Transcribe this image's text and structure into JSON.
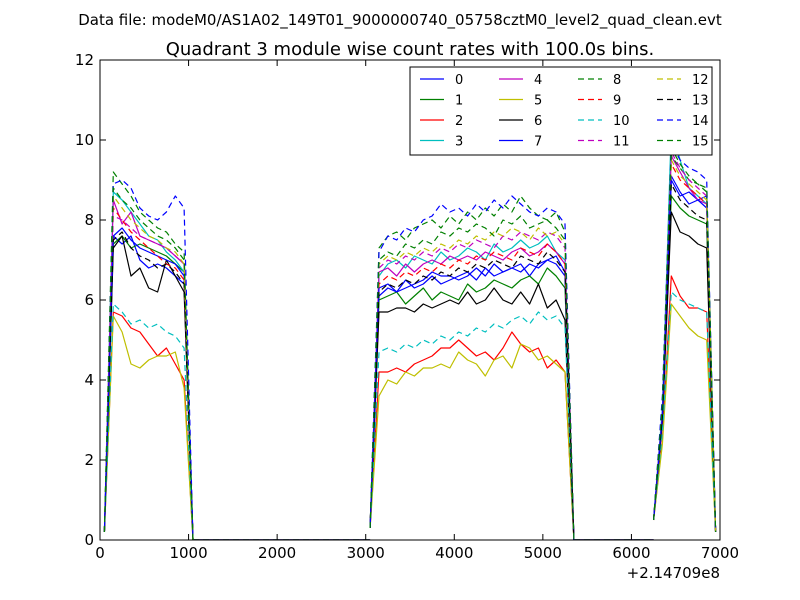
{
  "suptitle": "Data file: modeM0/AS1A02_149T01_9000000740_05758cztM0_level2_quad_clean.evt",
  "chart_data": {
    "type": "line",
    "title": "Quadrant 3 module wise count rates with 100.0s bins.",
    "xlabel": "",
    "ylabel": "",
    "x_offset_label": "+2.14709e8",
    "xlim": [
      0,
      7000
    ],
    "ylim": [
      0,
      12
    ],
    "x_ticks": [
      "0",
      "1000",
      "2000",
      "3000",
      "4000",
      "5000",
      "6000",
      "7000"
    ],
    "y_ticks": [
      "0",
      "2",
      "4",
      "6",
      "8",
      "10",
      "12"
    ],
    "grid": false,
    "legend_position": "upper-right",
    "x": [
      50,
      150,
      250,
      350,
      450,
      550,
      650,
      750,
      850,
      950,
      1050,
      1150,
      1250,
      1350,
      1450,
      1550,
      1650,
      1750,
      1850,
      1950,
      2050,
      2150,
      2250,
      2350,
      2450,
      2550,
      2650,
      2750,
      2850,
      2950,
      3050,
      3150,
      3250,
      3350,
      3450,
      3550,
      3650,
      3750,
      3850,
      3950,
      4050,
      4150,
      4250,
      4350,
      4450,
      4550,
      4650,
      4750,
      4850,
      4950,
      5050,
      5150,
      5250,
      5350,
      5450,
      5550,
      5650,
      5750,
      5850,
      5950,
      6050,
      6150,
      6250,
      6350,
      6450,
      6550,
      6650,
      6750,
      6850,
      6950
    ],
    "segments": [
      {
        "start": 0,
        "end": 10
      },
      {
        "start": 30,
        "end": 53
      },
      {
        "start": 62,
        "end": 69
      }
    ],
    "series": [
      {
        "name": "0",
        "color": "#0000ff",
        "dash": "solid",
        "values": [
          0.2,
          7.6,
          7.4,
          7.6,
          7.0,
          6.8,
          6.9,
          6.8,
          6.6,
          6.4,
          0,
          0,
          0,
          0,
          0,
          0,
          0,
          0,
          0,
          0,
          0,
          0,
          0,
          0,
          0,
          0,
          0,
          0,
          0,
          0,
          0.3,
          6.1,
          6.3,
          6.2,
          6.3,
          6.4,
          6.5,
          6.7,
          6.6,
          6.6,
          6.5,
          6.6,
          6.8,
          6.6,
          6.9,
          6.7,
          6.8,
          6.9,
          6.6,
          6.9,
          7.0,
          7.1,
          6.7,
          0,
          0,
          0,
          0,
          0,
          0,
          0,
          0,
          0,
          0.5,
          3.0,
          9.0,
          8.6,
          8.7,
          8.5,
          8.6,
          0.2
        ]
      },
      {
        "name": "1",
        "color": "#008000",
        "dash": "solid",
        "values": [
          0.2,
          7.4,
          7.6,
          7.3,
          7.4,
          7.3,
          7.2,
          7.1,
          6.9,
          6.7,
          0,
          0,
          0,
          0,
          0,
          0,
          0,
          0,
          0,
          0,
          0,
          0,
          0,
          0,
          0,
          0,
          0,
          0,
          0,
          0,
          0.3,
          6.0,
          6.1,
          6.2,
          5.9,
          6.1,
          6.3,
          6.0,
          6.2,
          6.1,
          6.0,
          6.4,
          6.2,
          6.3,
          6.5,
          6.4,
          6.3,
          6.5,
          6.6,
          6.4,
          6.8,
          6.6,
          6.3,
          0,
          0,
          0,
          0,
          0,
          0,
          0,
          0,
          0,
          0.5,
          3.0,
          8.6,
          8.3,
          8.1,
          8.0,
          7.9,
          0.2
        ]
      },
      {
        "name": "2",
        "color": "#ff0000",
        "dash": "solid",
        "values": [
          0.2,
          5.7,
          5.6,
          5.3,
          5.2,
          4.9,
          4.6,
          4.8,
          4.4,
          4.0,
          0,
          0,
          0,
          0,
          0,
          0,
          0,
          0,
          0,
          0,
          0,
          0,
          0,
          0,
          0,
          0,
          0,
          0,
          0,
          0,
          0.3,
          4.2,
          4.2,
          4.3,
          4.2,
          4.4,
          4.5,
          4.6,
          4.8,
          4.8,
          5.0,
          4.8,
          4.6,
          4.7,
          4.5,
          4.8,
          5.2,
          4.9,
          4.7,
          4.8,
          4.3,
          4.5,
          4.2,
          0,
          0,
          0,
          0,
          0,
          0,
          0,
          0,
          0,
          0.5,
          2.5,
          6.6,
          6.1,
          5.8,
          5.8,
          5.7,
          0.2
        ]
      },
      {
        "name": "3",
        "color": "#00bfbf",
        "dash": "solid",
        "values": [
          0.2,
          8.7,
          8.5,
          8.2,
          7.9,
          7.6,
          7.5,
          7.2,
          7.0,
          6.7,
          0,
          0,
          0,
          0,
          0,
          0,
          0,
          0,
          0,
          0,
          0,
          0,
          0,
          0,
          0,
          0,
          0,
          0,
          0,
          0,
          0.3,
          6.6,
          6.9,
          7.0,
          6.8,
          7.1,
          7.0,
          6.9,
          7.2,
          7.0,
          7.1,
          7.3,
          7.2,
          7.0,
          7.4,
          7.2,
          7.3,
          7.5,
          7.3,
          7.4,
          7.6,
          7.2,
          7.0,
          0,
          0,
          0,
          0,
          0,
          0,
          0,
          0,
          0,
          0.5,
          3.3,
          10.3,
          9.5,
          8.8,
          8.6,
          8.4,
          0.2
        ]
      },
      {
        "name": "4",
        "color": "#bf00bf",
        "dash": "solid",
        "values": [
          0.2,
          8.5,
          7.9,
          8.2,
          7.6,
          7.5,
          7.4,
          7.3,
          7.1,
          6.9,
          0,
          0,
          0,
          0,
          0,
          0,
          0,
          0,
          0,
          0,
          0,
          0,
          0,
          0,
          0,
          0,
          0,
          0,
          0,
          0,
          0.3,
          6.7,
          6.8,
          6.6,
          6.9,
          6.7,
          6.9,
          7.0,
          6.9,
          7.1,
          7.0,
          7.1,
          7.0,
          7.2,
          7.1,
          7.0,
          7.2,
          7.3,
          7.1,
          7.2,
          7.4,
          7.2,
          6.9,
          0,
          0,
          0,
          0,
          0,
          0,
          0,
          0,
          0,
          0.5,
          3.2,
          9.6,
          9.2,
          8.8,
          8.5,
          8.4,
          0.2
        ]
      },
      {
        "name": "5",
        "color": "#bfbf00",
        "dash": "solid",
        "values": [
          0.2,
          5.6,
          5.2,
          4.4,
          4.3,
          4.5,
          4.6,
          4.6,
          4.7,
          3.8,
          0,
          0,
          0,
          0,
          0,
          0,
          0,
          0,
          0,
          0,
          0,
          0,
          0,
          0,
          0,
          0,
          0,
          0,
          0,
          0,
          0.3,
          3.6,
          4.0,
          3.9,
          4.2,
          4.1,
          4.3,
          4.3,
          4.4,
          4.3,
          4.7,
          4.5,
          4.4,
          4.1,
          4.5,
          4.6,
          4.3,
          4.9,
          4.8,
          4.5,
          4.6,
          4.4,
          4.2,
          0,
          0,
          0,
          0,
          0,
          0,
          0,
          0,
          0,
          0.5,
          2.4,
          5.9,
          5.6,
          5.3,
          5.1,
          5.0,
          0.2
        ]
      },
      {
        "name": "6",
        "color": "#000000",
        "dash": "solid",
        "values": [
          0.2,
          7.3,
          7.6,
          6.6,
          6.8,
          6.3,
          6.2,
          7.0,
          6.6,
          6.2,
          0,
          0,
          0,
          0,
          0,
          0,
          0,
          0,
          0,
          0,
          0,
          0,
          0,
          0,
          0,
          0,
          0,
          0,
          0,
          0,
          0.3,
          5.7,
          5.7,
          5.8,
          5.8,
          5.7,
          5.9,
          5.8,
          5.9,
          6.0,
          5.9,
          6.2,
          5.9,
          6.0,
          6.3,
          6.0,
          5.9,
          6.2,
          5.9,
          6.4,
          5.8,
          6.0,
          5.5,
          0,
          0,
          0,
          0,
          0,
          0,
          0,
          0,
          0,
          0.5,
          3.0,
          8.2,
          7.7,
          7.6,
          7.4,
          7.3,
          0.2
        ]
      },
      {
        "name": "7",
        "color": "#0000ff",
        "dash": "solid",
        "values": [
          0.2,
          7.6,
          7.8,
          7.5,
          7.3,
          7.2,
          7.1,
          7.0,
          6.9,
          6.6,
          0,
          0,
          0,
          0,
          0,
          0,
          0,
          0,
          0,
          0,
          0,
          0,
          0,
          0,
          0,
          0,
          0,
          0,
          0,
          0,
          0.3,
          6.3,
          6.4,
          6.2,
          6.5,
          6.3,
          6.4,
          6.6,
          6.4,
          6.5,
          6.6,
          6.7,
          6.5,
          6.8,
          6.6,
          6.7,
          6.8,
          6.7,
          6.9,
          6.8,
          7.0,
          6.9,
          6.6,
          0,
          0,
          0,
          0,
          0,
          0,
          0,
          0,
          0,
          0.5,
          3.1,
          9.1,
          8.7,
          8.4,
          8.5,
          8.3,
          0.2
        ]
      },
      {
        "name": "8",
        "color": "#008000",
        "dash": "dash",
        "values": [
          0.2,
          9.2,
          8.9,
          8.6,
          8.2,
          8.0,
          7.8,
          7.7,
          7.4,
          7.2,
          0,
          0,
          0,
          0,
          0,
          0,
          0,
          0,
          0,
          0,
          0,
          0,
          0,
          0,
          0,
          0,
          0,
          0,
          0,
          0,
          0.3,
          7.3,
          7.6,
          7.7,
          7.5,
          7.8,
          7.9,
          8.0,
          7.8,
          8.1,
          7.9,
          8.2,
          8.0,
          8.3,
          8.1,
          8.4,
          8.2,
          8.6,
          8.3,
          8.1,
          8.0,
          8.2,
          7.7,
          0,
          0,
          0,
          0,
          0,
          0,
          0,
          0,
          0,
          0.5,
          3.5,
          9.6,
          9.3,
          9.0,
          8.9,
          8.7,
          0.2
        ]
      },
      {
        "name": "9",
        "color": "#ff0000",
        "dash": "dash",
        "values": [
          0.2,
          8.3,
          8.0,
          7.7,
          7.5,
          7.3,
          7.1,
          6.9,
          6.8,
          6.5,
          0,
          0,
          0,
          0,
          0,
          0,
          0,
          0,
          0,
          0,
          0,
          0,
          0,
          0,
          0,
          0,
          0,
          0,
          0,
          0,
          0.3,
          6.4,
          6.6,
          6.5,
          6.7,
          6.6,
          6.8,
          6.7,
          6.9,
          6.8,
          7.0,
          6.9,
          7.1,
          7.0,
          7.2,
          7.1,
          7.0,
          7.3,
          7.2,
          7.1,
          7.4,
          7.2,
          6.9,
          0,
          0,
          0,
          0,
          0,
          0,
          0,
          0,
          0,
          0.5,
          3.2,
          9.4,
          9.0,
          8.8,
          8.6,
          8.4,
          0.2
        ]
      },
      {
        "name": "10",
        "color": "#00bfbf",
        "dash": "dash",
        "values": [
          0.2,
          5.9,
          5.7,
          5.4,
          5.5,
          5.3,
          5.4,
          5.2,
          5.1,
          4.8,
          0,
          0,
          0,
          0,
          0,
          0,
          0,
          0,
          0,
          0,
          0,
          0,
          0,
          0,
          0,
          0,
          0,
          0,
          0,
          0,
          0.3,
          4.7,
          4.8,
          4.7,
          4.9,
          4.8,
          5.0,
          4.9,
          5.1,
          5.0,
          5.2,
          5.1,
          5.3,
          5.2,
          5.4,
          5.3,
          5.5,
          5.6,
          5.4,
          5.7,
          5.5,
          5.6,
          5.3,
          0,
          0,
          0,
          0,
          0,
          0,
          0,
          0,
          0,
          0.5,
          2.7,
          6.2,
          6.0,
          5.9,
          5.8,
          5.7,
          0.2
        ]
      },
      {
        "name": "11",
        "color": "#bf00bf",
        "dash": "dash",
        "values": [
          0.2,
          8.1,
          8.0,
          7.8,
          7.6,
          7.5,
          7.4,
          7.3,
          7.1,
          6.9,
          0,
          0,
          0,
          0,
          0,
          0,
          0,
          0,
          0,
          0,
          0,
          0,
          0,
          0,
          0,
          0,
          0,
          0,
          0,
          0,
          0.3,
          6.8,
          7.0,
          6.9,
          7.1,
          7.0,
          7.2,
          7.1,
          7.3,
          7.2,
          7.4,
          7.3,
          7.5,
          7.4,
          7.3,
          7.6,
          7.5,
          7.7,
          7.6,
          7.5,
          7.7,
          7.6,
          7.3,
          0,
          0,
          0,
          0,
          0,
          0,
          0,
          0,
          0,
          0.5,
          3.3,
          9.7,
          9.3,
          9.0,
          8.8,
          8.6,
          0.2
        ]
      },
      {
        "name": "12",
        "color": "#bfbf00",
        "dash": "dash",
        "values": [
          0.2,
          8.6,
          8.3,
          8.0,
          7.8,
          7.6,
          7.5,
          7.3,
          7.2,
          6.9,
          0,
          0,
          0,
          0,
          0,
          0,
          0,
          0,
          0,
          0,
          0,
          0,
          0,
          0,
          0,
          0,
          0,
          0,
          0,
          0,
          0.3,
          6.9,
          7.1,
          7.0,
          7.2,
          7.1,
          7.3,
          7.2,
          7.4,
          7.3,
          7.5,
          7.4,
          7.6,
          7.5,
          7.7,
          7.6,
          7.8,
          7.7,
          7.5,
          7.8,
          7.6,
          7.7,
          7.4,
          0,
          0,
          0,
          0,
          0,
          0,
          0,
          0,
          0,
          0.5,
          3.3,
          9.5,
          9.1,
          8.9,
          8.7,
          8.5,
          0.2
        ]
      },
      {
        "name": "13",
        "color": "#000000",
        "dash": "dash",
        "values": [
          0.2,
          7.5,
          7.7,
          7.3,
          7.1,
          7.0,
          6.8,
          6.9,
          6.7,
          6.4,
          0,
          0,
          0,
          0,
          0,
          0,
          0,
          0,
          0,
          0,
          0,
          0,
          0,
          0,
          0,
          0,
          0,
          0,
          0,
          0,
          0.3,
          6.2,
          6.4,
          6.3,
          6.5,
          6.4,
          6.6,
          6.5,
          6.7,
          6.6,
          6.8,
          6.7,
          6.9,
          6.8,
          7.0,
          6.9,
          6.8,
          7.1,
          7.0,
          6.9,
          7.2,
          7.0,
          6.7,
          0,
          0,
          0,
          0,
          0,
          0,
          0,
          0,
          0,
          0.5,
          3.1,
          8.9,
          8.5,
          8.3,
          8.1,
          8.0,
          0.2
        ]
      },
      {
        "name": "14",
        "color": "#0000ff",
        "dash": "dash",
        "values": [
          0.2,
          8.9,
          9.0,
          8.8,
          8.3,
          8.1,
          8.0,
          8.2,
          8.6,
          8.3,
          0,
          0,
          0,
          0,
          0,
          0,
          0,
          0,
          0,
          0,
          0,
          0,
          0,
          0,
          0,
          0,
          0,
          0,
          0,
          0,
          0.3,
          7.2,
          7.6,
          7.5,
          7.8,
          7.7,
          8.0,
          8.1,
          8.4,
          8.2,
          8.3,
          8.1,
          8.4,
          8.2,
          8.5,
          8.3,
          8.6,
          8.4,
          8.2,
          8.1,
          8.3,
          8.2,
          7.9,
          0,
          0,
          0,
          0,
          0,
          0,
          0,
          0,
          0,
          0.5,
          3.6,
          9.9,
          9.5,
          9.3,
          9.2,
          9.0,
          0.2
        ]
      },
      {
        "name": "15",
        "color": "#008000",
        "dash": "dash",
        "values": [
          0.2,
          8.8,
          8.5,
          8.3,
          8.0,
          7.8,
          7.6,
          7.5,
          7.3,
          7.0,
          0,
          0,
          0,
          0,
          0,
          0,
          0,
          0,
          0,
          0,
          0,
          0,
          0,
          0,
          0,
          0,
          0,
          0,
          0,
          0,
          0.3,
          7.0,
          7.2,
          7.1,
          7.4,
          7.3,
          7.5,
          7.4,
          7.7,
          7.6,
          7.8,
          7.7,
          7.9,
          7.8,
          7.6,
          8.0,
          7.9,
          8.1,
          7.8,
          7.9,
          8.0,
          7.8,
          7.5,
          0,
          0,
          0,
          0,
          0,
          0,
          0,
          0,
          0,
          0.5,
          3.4,
          9.8,
          9.4,
          9.1,
          8.9,
          8.8,
          0.2
        ]
      }
    ]
  }
}
